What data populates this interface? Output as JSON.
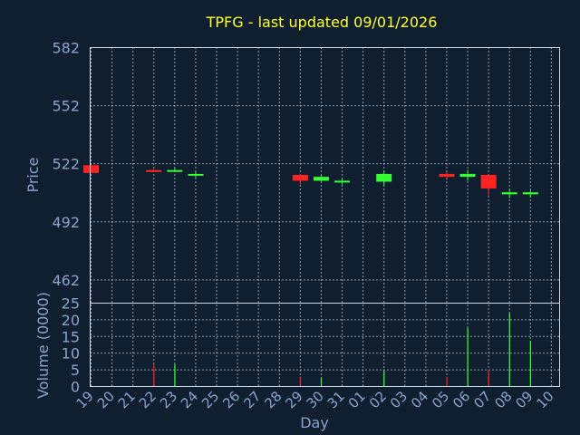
{
  "chart_data": [
    {
      "type": "candlestick",
      "title": "TPFG - last updated 09/01/2026",
      "ylabel": "Price",
      "ylim": [
        450,
        582
      ],
      "yticks": [
        "582",
        "552",
        "522",
        "492",
        "462"
      ],
      "grid": true,
      "colors": {
        "up": "#33ff33",
        "down": "#ff2222",
        "background": "#0f1f30",
        "title": "#ffff33",
        "axis_text": "#8aa3cc"
      },
      "candles": [
        {
          "day": "19",
          "open": 521,
          "high": 521,
          "low": 517,
          "close": 517
        },
        {
          "day": "22",
          "open": 518.5,
          "high": 519,
          "low": 517.5,
          "close": 517.5
        },
        {
          "day": "23",
          "open": 518,
          "high": 519.5,
          "low": 517.5,
          "close": 518.5
        },
        {
          "day": "24",
          "open": 516,
          "high": 517.5,
          "low": 514.5,
          "close": 516.5
        },
        {
          "day": "29",
          "open": 516,
          "high": 516.5,
          "low": 510.5,
          "close": 513
        },
        {
          "day": "30",
          "open": 513,
          "high": 515.5,
          "low": 512.5,
          "close": 515
        },
        {
          "day": "31",
          "open": 512.5,
          "high": 514,
          "low": 511,
          "close": 513
        },
        {
          "day": "02",
          "open": 512.5,
          "high": 518,
          "low": 510.5,
          "close": 516.5
        },
        {
          "day": "05",
          "open": 516.5,
          "high": 517.5,
          "low": 514.5,
          "close": 515
        },
        {
          "day": "06",
          "open": 515,
          "high": 518.5,
          "low": 513,
          "close": 516.5
        },
        {
          "day": "07",
          "open": 516,
          "high": 516,
          "low": 505,
          "close": 509
        },
        {
          "day": "08",
          "open": 506,
          "high": 508.5,
          "low": 504,
          "close": 507
        },
        {
          "day": "09",
          "open": 506,
          "high": 508,
          "low": 504.5,
          "close": 507
        }
      ]
    },
    {
      "type": "bar",
      "ylabel": "Volume (0000)",
      "xlabel": "Day",
      "ylim": [
        0,
        25
      ],
      "yticks": [
        "25",
        "20",
        "15",
        "10",
        "5",
        "0"
      ],
      "grid": true,
      "categories": [
        "19",
        "20",
        "21",
        "22",
        "23",
        "24",
        "25",
        "26",
        "27",
        "28",
        "29",
        "30",
        "31",
        "01",
        "02",
        "03",
        "04",
        "05",
        "06",
        "07",
        "08",
        "09",
        "10"
      ],
      "values": [
        0,
        0,
        0,
        6.5,
        6.5,
        0,
        0,
        0,
        0,
        0,
        2.8,
        2.5,
        0,
        0,
        4.5,
        0,
        0,
        2.8,
        17.5,
        5,
        22,
        13.5,
        0
      ]
    }
  ]
}
